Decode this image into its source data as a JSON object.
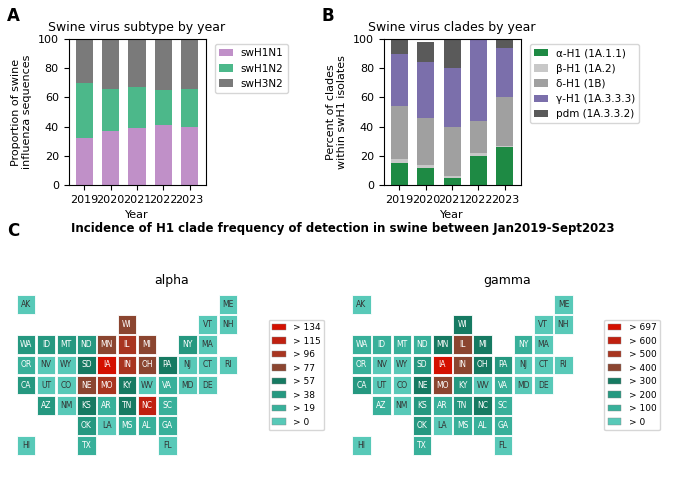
{
  "chart_data": [
    {
      "type": "bar",
      "stacked": true,
      "title": "Swine virus subtype by year",
      "xlabel": "Year",
      "ylabel": "Proportion of swine\ninfluenza sequences",
      "categories": [
        "2019",
        "2020",
        "2021",
        "2022",
        "2023"
      ],
      "series": [
        {
          "name": "swH1N1",
          "color": "#C090C8",
          "values": [
            32,
            37,
            39,
            41,
            40
          ]
        },
        {
          "name": "swH1N2",
          "color": "#4CB88A",
          "values": [
            38,
            29,
            28,
            24,
            26
          ]
        },
        {
          "name": "swH3N2",
          "color": "#7A7A7A",
          "values": [
            30,
            33,
            33,
            35,
            34
          ]
        }
      ],
      "ylim": [
        0,
        100
      ],
      "yticks": [
        0,
        20,
        40,
        60,
        80,
        100
      ],
      "legend": "upper left",
      "annotations": [
        "A"
      ]
    },
    {
      "type": "bar",
      "stacked": true,
      "title": "Swine virus clades by year",
      "xlabel": "Year",
      "ylabel": "Percent of clades\nwithin swH1 isolates",
      "categories": [
        "2019",
        "2020",
        "2021",
        "2022",
        "2023"
      ],
      "series": [
        {
          "name": "α-H1 (1A.1.1)",
          "color": "#1E8A44",
          "values": [
            15,
            12,
            5,
            20,
            26
          ]
        },
        {
          "name": "β-H1 (1A.2)",
          "color": "#C8C8C8",
          "values": [
            3,
            2,
            1,
            2,
            1
          ]
        },
        {
          "name": "δ-H1 (1B)",
          "color": "#A0A0A0",
          "values": [
            36,
            32,
            34,
            22,
            33
          ]
        },
        {
          "name": "γ-H1 (1A.3.3.3)",
          "color": "#7B6FAB",
          "values": [
            36,
            38,
            40,
            56,
            34
          ]
        },
        {
          "name": "pdm (1A.3.3.2)",
          "color": "#5A5A5A",
          "values": [
            10,
            14,
            20,
            0,
            6
          ]
        }
      ],
      "ylim": [
        0,
        100
      ],
      "yticks": [
        0,
        20,
        40,
        60,
        80,
        100
      ],
      "legend": "upper left",
      "annotations": [
        "B"
      ]
    },
    {
      "type": "map",
      "title": "alpha",
      "categories": [
        "WA",
        "OR",
        "CA",
        "NV",
        "ID",
        "MT",
        "WY",
        "UT",
        "AZ",
        "CO",
        "NM",
        "ND",
        "SD",
        "NE",
        "KS",
        "MN",
        "IA",
        "MO",
        "WI",
        "IL",
        "IN",
        "MI",
        "OH",
        "KY",
        "TN",
        "NC",
        "SC",
        "GA",
        "FL",
        "AL",
        "MS",
        "AR",
        "LA",
        "TX",
        "OK",
        "PA",
        "NY",
        "VT",
        "NH",
        "ME",
        "MA",
        "RI",
        "CT",
        "NJ",
        "DE",
        "MD",
        "WV",
        "VA",
        "AK",
        "HI"
      ],
      "values": [
        2,
        1,
        2,
        0,
        2,
        2,
        0,
        0,
        2,
        0,
        0,
        2,
        3,
        4,
        3,
        4,
        7,
        5,
        4,
        5,
        5,
        4,
        4,
        3,
        3,
        6,
        1,
        1,
        0,
        1,
        1,
        1,
        0,
        1,
        2,
        3,
        2,
        0,
        0,
        0,
        0,
        0,
        0,
        0,
        0,
        0,
        0,
        1,
        0,
        0
      ],
      "levels": [
        {
          "value": 0,
          "label": "> 0",
          "color": "#58C9B8"
        },
        {
          "value": 1,
          "label": "> 19",
          "color": "#38B09A"
        },
        {
          "value": 2,
          "label": "> 38",
          "color": "#259880"
        },
        {
          "value": 3,
          "label": "> 57",
          "color": "#167A62"
        },
        {
          "value": 4,
          "label": "> 77",
          "color": "#8B4530"
        },
        {
          "value": 5,
          "label": "> 96",
          "color": "#A83520"
        },
        {
          "value": 6,
          "label": "> 115",
          "color": "#C02010"
        },
        {
          "value": 7,
          "label": "> 134",
          "color": "#D41000"
        }
      ],
      "legend": "center right",
      "annotations": [
        "C",
        "Incidence of H1 clade frequency of detection in swine between Jan2019-Sept2023"
      ]
    },
    {
      "type": "map",
      "title": "gamma",
      "categories": [
        "WA",
        "OR",
        "CA",
        "NV",
        "ID",
        "MT",
        "WY",
        "UT",
        "AZ",
        "CO",
        "NM",
        "ND",
        "SD",
        "NE",
        "KS",
        "MN",
        "IA",
        "MO",
        "WI",
        "IL",
        "IN",
        "MI",
        "OH",
        "KY",
        "TN",
        "NC",
        "SC",
        "GA",
        "FL",
        "AL",
        "MS",
        "AR",
        "LA",
        "TX",
        "OK",
        "PA",
        "NY",
        "VT",
        "NH",
        "ME",
        "MA",
        "RI",
        "CT",
        "NJ",
        "DE",
        "MD",
        "WV",
        "VA",
        "AK",
        "HI"
      ],
      "values": [
        1,
        1,
        2,
        0,
        1,
        1,
        0,
        0,
        1,
        0,
        0,
        1,
        2,
        3,
        2,
        3,
        7,
        4,
        3,
        4,
        4,
        3,
        3,
        2,
        2,
        3,
        1,
        1,
        0,
        1,
        1,
        1,
        0,
        1,
        2,
        2,
        1,
        0,
        0,
        0,
        0,
        0,
        0,
        0,
        0,
        0,
        0,
        1,
        0,
        0
      ],
      "levels": [
        {
          "value": 0,
          "label": "> 0",
          "color": "#58C9B8"
        },
        {
          "value": 1,
          "label": "> 100",
          "color": "#38B09A"
        },
        {
          "value": 2,
          "label": "> 200",
          "color": "#259880"
        },
        {
          "value": 3,
          "label": "> 300",
          "color": "#167A62"
        },
        {
          "value": 4,
          "label": "> 400",
          "color": "#8B4530"
        },
        {
          "value": 5,
          "label": "> 500",
          "color": "#A83520"
        },
        {
          "value": 6,
          "label": "> 600",
          "color": "#C02010"
        },
        {
          "value": 7,
          "label": "> 697",
          "color": "#D41000"
        }
      ],
      "legend": "center right"
    }
  ]
}
